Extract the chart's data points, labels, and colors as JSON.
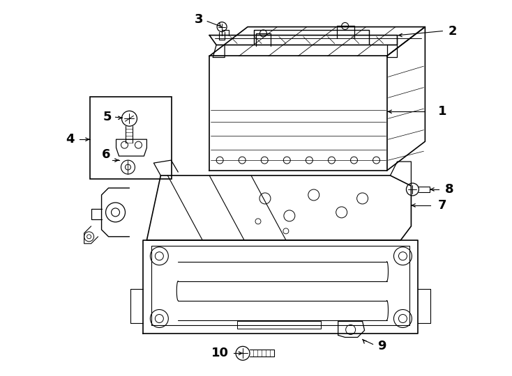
{
  "bg_color": "#ffffff",
  "fig_width": 7.34,
  "fig_height": 5.4,
  "dpi": 100,
  "label_fontsize": 13
}
